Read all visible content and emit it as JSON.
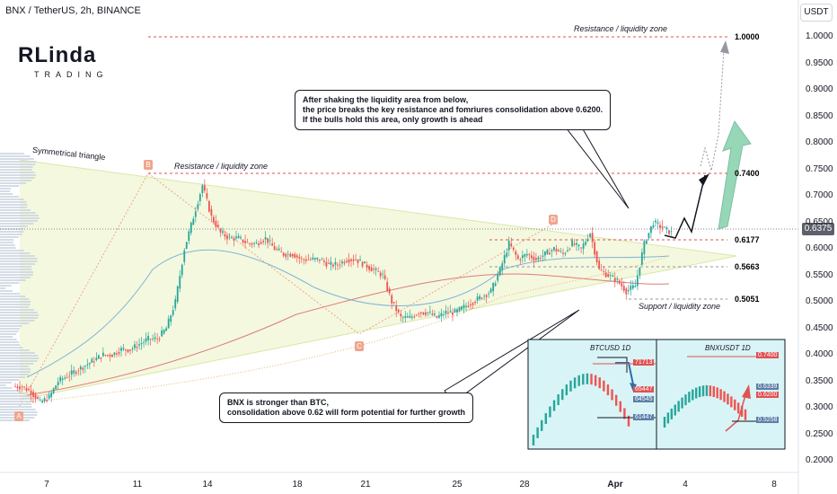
{
  "header": {
    "title": "BNX / TetherUS, 2h, BINANCE",
    "currency": "USDT"
  },
  "logo": {
    "line1": "RLinda",
    "line2": "TRADING"
  },
  "chart_data": {
    "type": "candlestick",
    "symbol": "BNX / TetherUS",
    "timeframe": "2h",
    "exchange": "BINANCE",
    "y_ticks": [
      "1.0000",
      "0.9500",
      "0.9000",
      "0.8500",
      "0.8000",
      "0.7500",
      "0.7000",
      "0.6500",
      "0.6000",
      "0.5500",
      "0.5000",
      "0.4500",
      "0.4000",
      "0.3500",
      "0.3000",
      "0.2500",
      "0.2000"
    ],
    "ylim": [
      0.2,
      1.0
    ],
    "x_ticks": [
      "7",
      "11",
      "14",
      "18",
      "21",
      "25",
      "28",
      "Apr",
      "4",
      "8"
    ],
    "last_price": "0.6375",
    "levels": [
      {
        "label": "1.0000",
        "value": 1.0,
        "text": "Resistance / liquidity zone",
        "style": "dashed-red"
      },
      {
        "label": "0.7400",
        "value": 0.74,
        "text": "Resistance / liquidity zone",
        "style": "dashed-red"
      },
      {
        "label": "0.6177",
        "value": 0.6177,
        "style": "dashed-red"
      },
      {
        "label": "0.5663",
        "value": 0.5663,
        "style": "dashed-gray"
      },
      {
        "label": "0.5051",
        "value": 0.5051,
        "text": "Support / liquidity zone",
        "style": "dashed-gray"
      }
    ],
    "pattern_label": "Symmetrical triangle",
    "points": [
      {
        "label": "A",
        "price": 0.3
      },
      {
        "label": "B",
        "price": 0.74
      },
      {
        "label": "C",
        "price": 0.44
      },
      {
        "label": "D",
        "price": 0.62
      }
    ],
    "candles_close": [
      0.34,
      0.33,
      0.31,
      0.32,
      0.35,
      0.36,
      0.37,
      0.38,
      0.39,
      0.4,
      0.4,
      0.41,
      0.41,
      0.42,
      0.43,
      0.43,
      0.45,
      0.5,
      0.6,
      0.66,
      0.72,
      0.66,
      0.63,
      0.62,
      0.62,
      0.61,
      0.61,
      0.62,
      0.6,
      0.59,
      0.59,
      0.58,
      0.58,
      0.58,
      0.57,
      0.57,
      0.58,
      0.58,
      0.57,
      0.56,
      0.55,
      0.5,
      0.47,
      0.47,
      0.48,
      0.48,
      0.47,
      0.48,
      0.48,
      0.49,
      0.5,
      0.51,
      0.52,
      0.56,
      0.61,
      0.58,
      0.59,
      0.58,
      0.59,
      0.6,
      0.59,
      0.61,
      0.6,
      0.63,
      0.56,
      0.55,
      0.54,
      0.52,
      0.53,
      0.61,
      0.65,
      0.64,
      0.63
    ],
    "annotations": [
      "After shaking the liquidity area from below,",
      "the price breaks the key resistance and fomriures consolidation above 0.6200.",
      "If the bulls hold this area, only growth is ahead"
    ],
    "inset_charts": [
      {
        "title": "BTCUSD 1D",
        "labels": [
          "71713",
          "65447",
          "64545",
          "61447"
        ]
      },
      {
        "title": "BNXUSDT 1D",
        "labels": [
          "0.7400",
          "0.6339",
          "0.6200",
          "0.5258"
        ]
      }
    ]
  },
  "notes": {
    "top": [
      "After shaking the liquidity area from below,",
      "the price breaks the key resistance and fomriures consolidation above 0.6200.",
      "If the bulls hold this area, only growth is ahead"
    ],
    "bottom": [
      "BNX is stronger than BTC,",
      "consolidation above 0.62 will form potential for further growth"
    ]
  }
}
